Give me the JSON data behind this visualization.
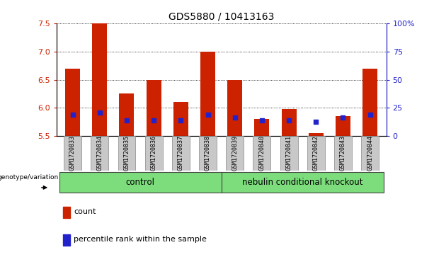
{
  "title": "GDS5880 / 10413163",
  "samples": [
    "GSM1720833",
    "GSM1720834",
    "GSM1720835",
    "GSM1720836",
    "GSM1720837",
    "GSM1720838",
    "GSM1720839",
    "GSM1720840",
    "GSM1720841",
    "GSM1720842",
    "GSM1720843",
    "GSM1720844"
  ],
  "bar_heights": [
    6.7,
    7.5,
    6.25,
    6.5,
    6.1,
    7.0,
    6.5,
    5.8,
    5.98,
    5.55,
    5.85,
    6.7
  ],
  "blue_dot_values": [
    5.88,
    5.92,
    5.78,
    5.78,
    5.78,
    5.88,
    5.83,
    5.78,
    5.78,
    5.75,
    5.83,
    5.88
  ],
  "ymin": 5.5,
  "ymax": 7.5,
  "yticks": [
    5.5,
    6.0,
    6.5,
    7.0,
    7.5
  ],
  "right_yticks": [
    0,
    25,
    50,
    75,
    100
  ],
  "right_ytick_labels": [
    "0",
    "25",
    "50",
    "75",
    "100%"
  ],
  "bar_color": "#cc2200",
  "blue_dot_color": "#2222cc",
  "control_label": "control",
  "knockout_label": "nebulin conditional knockout",
  "group_label": "genotype/variation",
  "control_bg": "#7ddd7d",
  "knockout_bg": "#7ddd7d",
  "sample_bg": "#c8c8c8",
  "legend_count_label": "count",
  "legend_pct_label": "percentile rank within the sample",
  "title_fontsize": 10,
  "tick_fontsize": 8,
  "bar_width": 0.55,
  "n_control": 6,
  "n_knockout": 6
}
